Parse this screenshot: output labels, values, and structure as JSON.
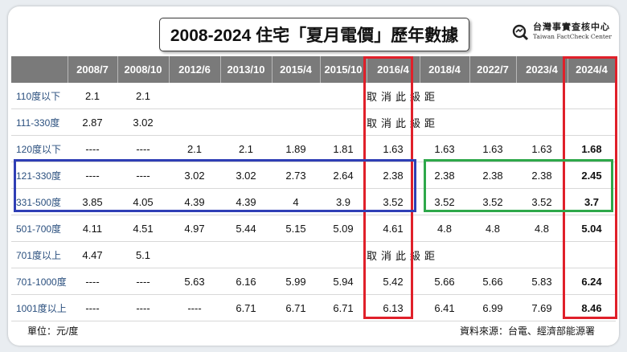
{
  "title": "2008-2024 住宅「夏月電價」歷年數據",
  "logo": {
    "name_cn": "台灣事實查核中心",
    "name_en": "Taiwan FactCheck Center",
    "icon": "magnifier-logo-icon"
  },
  "table": {
    "columns": [
      "2008/7",
      "2008/10",
      "2012/6",
      "2013/10",
      "2015/4",
      "2015/10",
      "2016/4",
      "2018/4",
      "2022/7",
      "2023/4",
      "2024/4"
    ],
    "rows": [
      {
        "label": "110度以下",
        "v": [
          "2.1",
          "2.1"
        ],
        "note": "取消此級距"
      },
      {
        "label": "111-330度",
        "v": [
          "2.87",
          "3.02"
        ],
        "note": "取消此級距"
      },
      {
        "label": "120度以下",
        "v": [
          "----",
          "----",
          "2.1",
          "2.1",
          "1.89",
          "1.81",
          "1.63",
          "1.63",
          "1.63",
          "1.63",
          "1.68"
        ]
      },
      {
        "label": "121-330度",
        "v": [
          "----",
          "----",
          "3.02",
          "3.02",
          "2.73",
          "2.64",
          "2.38",
          "2.38",
          "2.38",
          "2.38",
          "2.45"
        ]
      },
      {
        "label": "331-500度",
        "v": [
          "3.85",
          "4.05",
          "4.39",
          "4.39",
          "4",
          "3.9",
          "3.52",
          "3.52",
          "3.52",
          "3.52",
          "3.7"
        ]
      },
      {
        "label": "501-700度",
        "v": [
          "4.11",
          "4.51",
          "4.97",
          "5.44",
          "5.15",
          "5.09",
          "4.61",
          "4.8",
          "4.8",
          "4.8",
          "5.04"
        ]
      },
      {
        "label": "701度以上",
        "v": [
          "4.47",
          "5.1"
        ],
        "note": "取消此級距"
      },
      {
        "label": "701-1000度",
        "v": [
          "----",
          "----",
          "5.63",
          "6.16",
          "5.99",
          "5.94",
          "5.42",
          "5.66",
          "5.66",
          "5.83",
          "6.24"
        ]
      },
      {
        "label": "1001度以上",
        "v": [
          "----",
          "----",
          "----",
          "6.71",
          "6.71",
          "6.71",
          "6.13",
          "6.41",
          "6.99",
          "7.69",
          "8.46"
        ]
      }
    ]
  },
  "footer": {
    "unit": "單位：元/度",
    "source": "資料來源：台電、經濟部能源署"
  },
  "colors": {
    "header_bg": "#7a7a7a",
    "red": "#e0202a",
    "blue": "#2f3fb5",
    "green": "#2ea84a",
    "row_label": "#2a4f7e"
  }
}
